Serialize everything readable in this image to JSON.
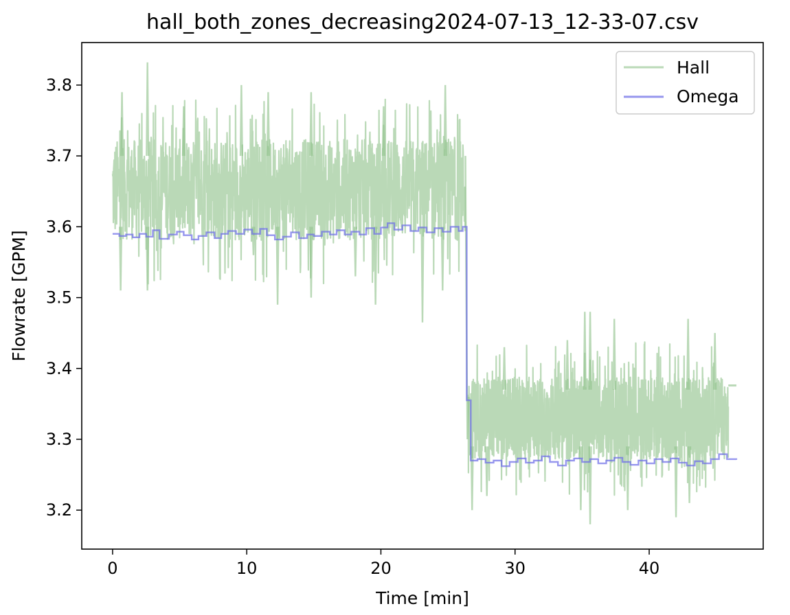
{
  "chart_data": {
    "type": "line",
    "title": "hall_both_zones_decreasing2024-07-13_12-33-07.csv",
    "xlabel": "Time [min]",
    "ylabel": "Flowrate [GPM]",
    "xlim": [
      -2.3,
      48.5
    ],
    "ylim": [
      3.145,
      3.86
    ],
    "xticks": [
      0,
      10,
      20,
      30,
      40
    ],
    "yticks": [
      3.2,
      3.3,
      3.4,
      3.5,
      3.6,
      3.7,
      3.8
    ],
    "xtick_labels": [
      "0",
      "10",
      "20",
      "30",
      "40"
    ],
    "ytick_labels": [
      "3.2",
      "3.3",
      "3.4",
      "3.5",
      "3.6",
      "3.7",
      "3.8"
    ],
    "grid": false,
    "legend_position": "top-right",
    "series": [
      {
        "name": "Hall",
        "color": "#8fc18b",
        "opacity": 0.62,
        "segments": [
          {
            "x_start": 0.0,
            "x_end": 26.3,
            "band_low": 3.585,
            "band_high": 3.72,
            "noise_min": 3.465,
            "noise_max": 3.83
          },
          {
            "x_start": 26.5,
            "x_end": 45.9,
            "band_low": 3.275,
            "band_high": 3.385,
            "noise_min": 3.177,
            "noise_max": 3.48
          },
          {
            "x_start": 45.9,
            "x_end": 46.5,
            "level": 3.376
          }
        ],
        "spikes_up": [
          [
            0.7,
            3.79
          ],
          [
            2.6,
            3.832
          ],
          [
            5.3,
            3.77
          ],
          [
            9.6,
            3.8
          ],
          [
            11.6,
            3.79
          ],
          [
            14.8,
            3.79
          ],
          [
            20.2,
            3.77
          ],
          [
            24.8,
            3.8
          ],
          [
            29.2,
            3.43
          ],
          [
            33.9,
            3.44
          ],
          [
            35.2,
            3.48
          ],
          [
            35.6,
            3.48
          ],
          [
            37.4,
            3.47
          ],
          [
            42.9,
            3.47
          ],
          [
            44.9,
            3.45
          ]
        ],
        "spikes_down": [
          [
            0.6,
            3.51
          ],
          [
            2.6,
            3.51
          ],
          [
            10.5,
            3.56
          ],
          [
            12.3,
            3.49
          ],
          [
            14.8,
            3.5
          ],
          [
            18.1,
            3.53
          ],
          [
            19.6,
            3.49
          ],
          [
            23.1,
            3.465
          ],
          [
            24.6,
            3.51
          ],
          [
            26.8,
            3.2
          ],
          [
            27.9,
            3.22
          ],
          [
            34.9,
            3.2
          ],
          [
            35.6,
            3.18
          ],
          [
            38.4,
            3.2
          ],
          [
            42.0,
            3.19
          ],
          [
            43.0,
            3.21
          ]
        ]
      },
      {
        "name": "Omega",
        "color": "#6e6ee8",
        "opacity": 0.72,
        "steps": [
          [
            0.0,
            3.59
          ],
          [
            0.5,
            3.587
          ],
          [
            1.0,
            3.589
          ],
          [
            1.5,
            3.585
          ],
          [
            2.0,
            3.59
          ],
          [
            2.5,
            3.586
          ],
          [
            3.0,
            3.595
          ],
          [
            3.5,
            3.583
          ],
          [
            4.2,
            3.589
          ],
          [
            4.8,
            3.593
          ],
          [
            5.3,
            3.588
          ],
          [
            5.9,
            3.582
          ],
          [
            6.4,
            3.587
          ],
          [
            7.0,
            3.592
          ],
          [
            7.6,
            3.584
          ],
          [
            8.1,
            3.59
          ],
          [
            8.6,
            3.594
          ],
          [
            9.2,
            3.59
          ],
          [
            9.8,
            3.596
          ],
          [
            10.4,
            3.59
          ],
          [
            11.0,
            3.597
          ],
          [
            11.5,
            3.588
          ],
          [
            12.1,
            3.582
          ],
          [
            12.7,
            3.586
          ],
          [
            13.3,
            3.592
          ],
          [
            13.9,
            3.584
          ],
          [
            14.5,
            3.589
          ],
          [
            15.0,
            3.587
          ],
          [
            15.6,
            3.593
          ],
          [
            16.2,
            3.589
          ],
          [
            16.7,
            3.595
          ],
          [
            17.3,
            3.589
          ],
          [
            17.8,
            3.593
          ],
          [
            18.4,
            3.589
          ],
          [
            18.9,
            3.598
          ],
          [
            19.5,
            3.59
          ],
          [
            20.0,
            3.599
          ],
          [
            20.5,
            3.605
          ],
          [
            21.0,
            3.596
          ],
          [
            21.6,
            3.602
          ],
          [
            22.2,
            3.594
          ],
          [
            22.8,
            3.599
          ],
          [
            23.4,
            3.592
          ],
          [
            24.0,
            3.598
          ],
          [
            24.6,
            3.593
          ],
          [
            25.2,
            3.6
          ],
          [
            25.8,
            3.594
          ],
          [
            26.1,
            3.6
          ],
          [
            26.4,
            3.355
          ],
          [
            26.7,
            3.27
          ],
          [
            27.2,
            3.272
          ],
          [
            27.8,
            3.267
          ],
          [
            28.4,
            3.27
          ],
          [
            29.0,
            3.262
          ],
          [
            29.6,
            3.268
          ],
          [
            30.2,
            3.273
          ],
          [
            30.8,
            3.267
          ],
          [
            31.4,
            3.27
          ],
          [
            32.0,
            3.276
          ],
          [
            32.6,
            3.268
          ],
          [
            33.2,
            3.263
          ],
          [
            33.8,
            3.27
          ],
          [
            34.4,
            3.273
          ],
          [
            35.0,
            3.268
          ],
          [
            35.6,
            3.272
          ],
          [
            36.2,
            3.266
          ],
          [
            36.8,
            3.27
          ],
          [
            37.4,
            3.274
          ],
          [
            38.0,
            3.268
          ],
          [
            38.6,
            3.264
          ],
          [
            39.2,
            3.27
          ],
          [
            39.8,
            3.266
          ],
          [
            40.4,
            3.272
          ],
          [
            41.0,
            3.268
          ],
          [
            41.6,
            3.273
          ],
          [
            42.2,
            3.267
          ],
          [
            42.8,
            3.263
          ],
          [
            43.4,
            3.269
          ],
          [
            44.0,
            3.266
          ],
          [
            44.6,
            3.272
          ],
          [
            45.2,
            3.279
          ],
          [
            45.8,
            3.272
          ],
          [
            46.5,
            3.271
          ]
        ]
      }
    ]
  }
}
